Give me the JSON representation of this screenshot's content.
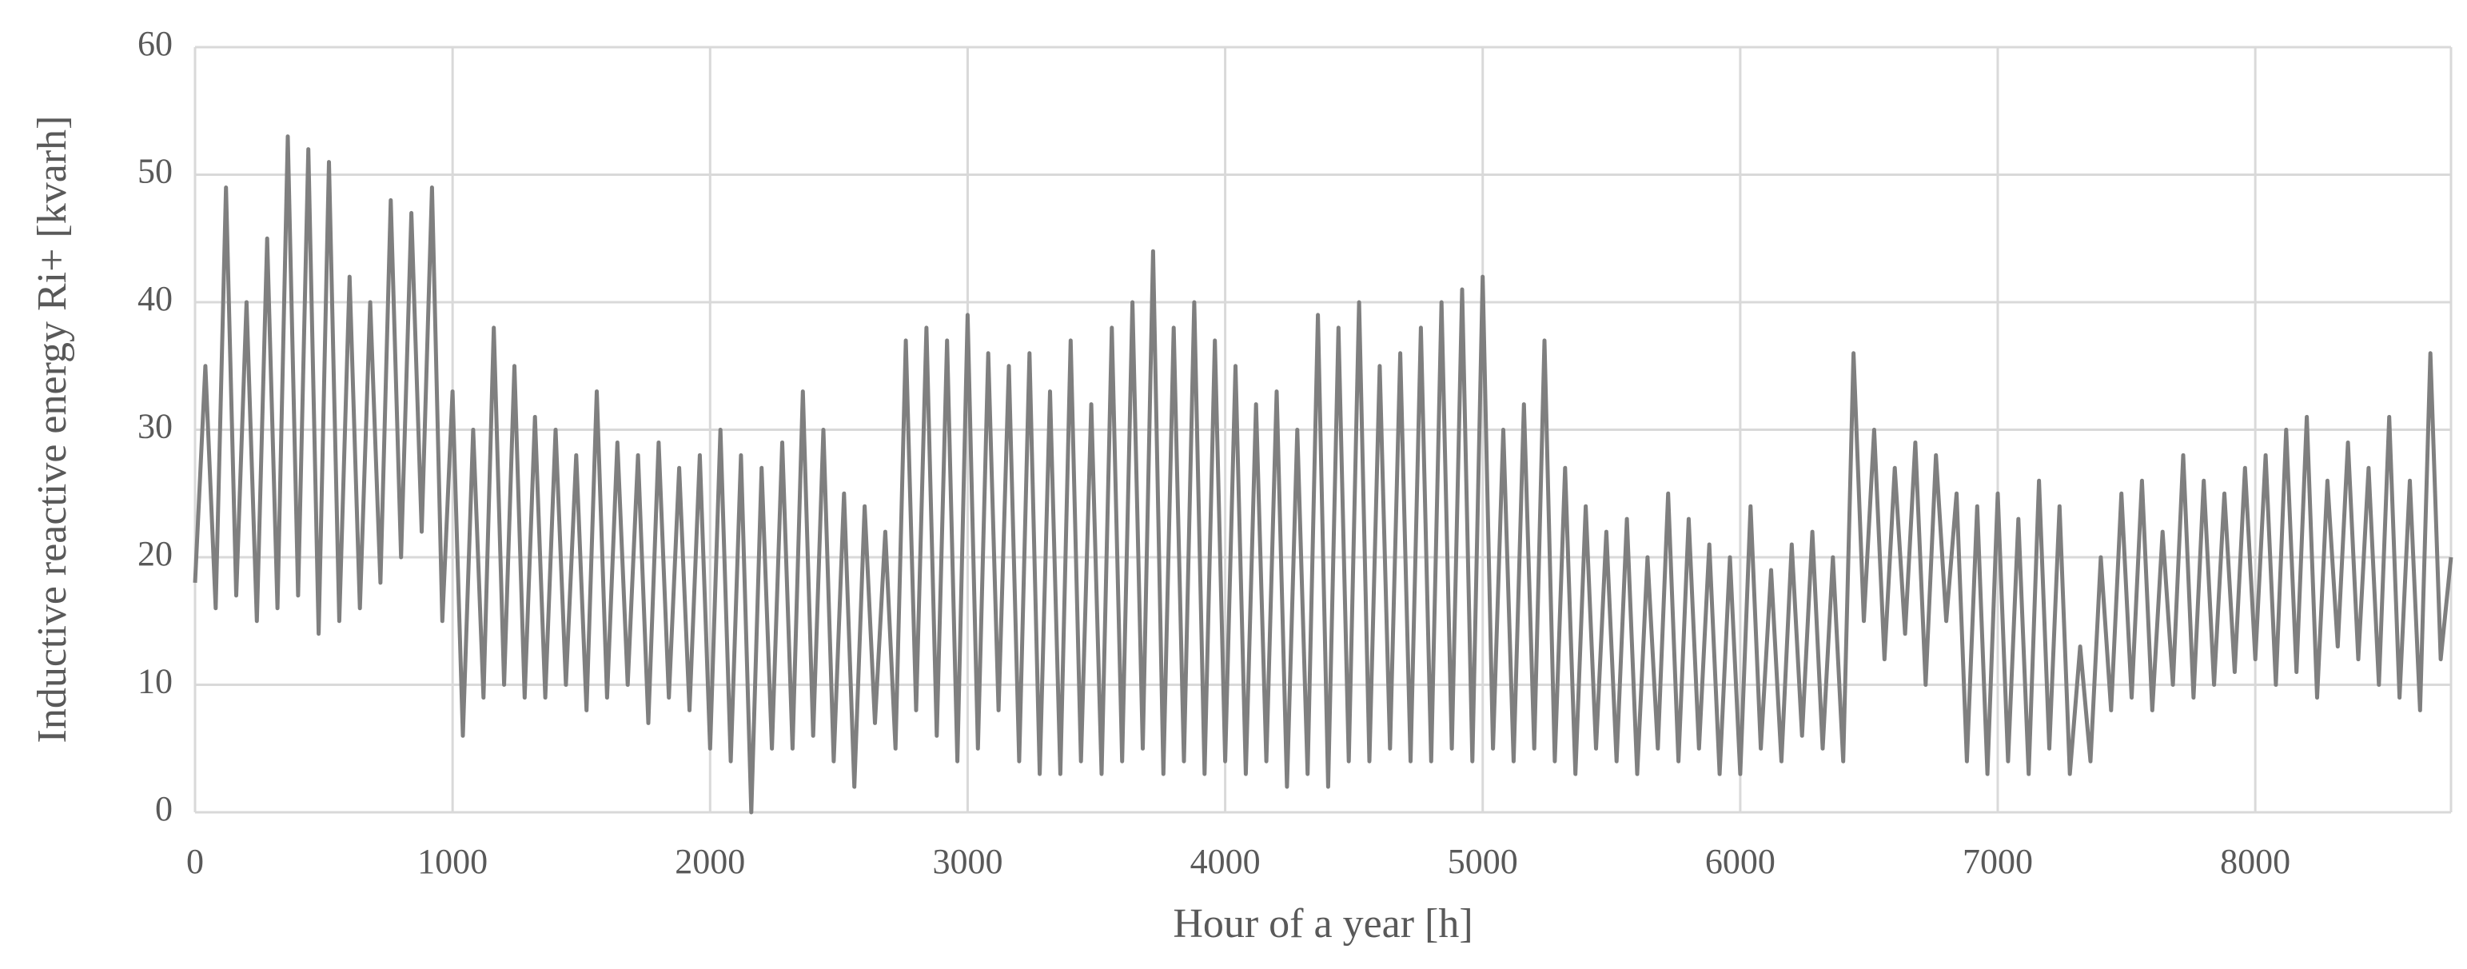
{
  "chart_data": {
    "type": "line",
    "x_label": "Hour of a year  [h]",
    "y_label": "Inductive reactive energy  Ri+ [kvarh]",
    "xlim": [
      0,
      8760
    ],
    "xticks": [
      0,
      1000,
      2000,
      3000,
      4000,
      5000,
      6000,
      7000,
      8000
    ],
    "ylim": [
      0,
      60
    ],
    "yticks": [
      0,
      10,
      20,
      30,
      40,
      50,
      60
    ],
    "grid": true,
    "x": [
      0,
      40,
      80,
      120,
      160,
      200,
      240,
      280,
      320,
      360,
      400,
      440,
      480,
      520,
      560,
      600,
      640,
      680,
      720,
      760,
      800,
      840,
      880,
      920,
      960,
      1000,
      1040,
      1080,
      1120,
      1160,
      1200,
      1240,
      1280,
      1320,
      1360,
      1400,
      1440,
      1480,
      1520,
      1560,
      1600,
      1640,
      1680,
      1720,
      1760,
      1800,
      1840,
      1880,
      1920,
      1960,
      2000,
      2040,
      2080,
      2120,
      2160,
      2200,
      2240,
      2280,
      2320,
      2360,
      2400,
      2440,
      2480,
      2520,
      2560,
      2600,
      2640,
      2680,
      2720,
      2760,
      2800,
      2840,
      2880,
      2920,
      2960,
      3000,
      3040,
      3080,
      3120,
      3160,
      3200,
      3240,
      3280,
      3320,
      3360,
      3400,
      3440,
      3480,
      3520,
      3560,
      3600,
      3640,
      3680,
      3720,
      3760,
      3800,
      3840,
      3880,
      3920,
      3960,
      4000,
      4040,
      4080,
      4120,
      4160,
      4200,
      4240,
      4280,
      4320,
      4360,
      4400,
      4440,
      4480,
      4520,
      4560,
      4600,
      4640,
      4680,
      4720,
      4760,
      4800,
      4840,
      4880,
      4920,
      4960,
      5000,
      5040,
      5080,
      5120,
      5160,
      5200,
      5240,
      5280,
      5320,
      5360,
      5400,
      5440,
      5480,
      5520,
      5560,
      5600,
      5640,
      5680,
      5720,
      5760,
      5800,
      5840,
      5880,
      5920,
      5960,
      6000,
      6040,
      6080,
      6120,
      6160,
      6200,
      6240,
      6280,
      6320,
      6360,
      6400,
      6440,
      6480,
      6520,
      6560,
      6600,
      6640,
      6680,
      6720,
      6760,
      6800,
      6840,
      6880,
      6920,
      6960,
      7000,
      7040,
      7080,
      7120,
      7160,
      7200,
      7240,
      7280,
      7320,
      7360,
      7400,
      7440,
      7480,
      7520,
      7560,
      7600,
      7640,
      7680,
      7720,
      7760,
      7800,
      7840,
      7880,
      7920,
      7960,
      8000,
      8040,
      8080,
      8120,
      8160,
      8200,
      8240,
      8280,
      8320,
      8360,
      8400,
      8440,
      8480,
      8520,
      8560,
      8600,
      8640,
      8680,
      8720,
      8760
    ],
    "series": [
      {
        "color": "#7f7f7f",
        "values": [
          18,
          35,
          16,
          49,
          17,
          40,
          15,
          45,
          16,
          53,
          17,
          52,
          14,
          51,
          15,
          42,
          16,
          40,
          18,
          48,
          20,
          47,
          22,
          49,
          15,
          33,
          6,
          30,
          9,
          38,
          10,
          35,
          9,
          31,
          9,
          30,
          10,
          28,
          8,
          33,
          9,
          29,
          10,
          28,
          7,
          29,
          9,
          27,
          8,
          28,
          5,
          30,
          4,
          28,
          0,
          27,
          5,
          29,
          5,
          33,
          6,
          30,
          4,
          25,
          2,
          24,
          7,
          22,
          5,
          37,
          8,
          38,
          6,
          37,
          4,
          39,
          5,
          36,
          8,
          35,
          4,
          36,
          3,
          33,
          3,
          37,
          4,
          32,
          3,
          38,
          4,
          40,
          5,
          44,
          3,
          38,
          4,
          40,
          3,
          37,
          4,
          35,
          3,
          32,
          4,
          33,
          2,
          30,
          3,
          39,
          2,
          38,
          4,
          40,
          4,
          35,
          5,
          36,
          4,
          38,
          4,
          40,
          5,
          41,
          4,
          42,
          5,
          30,
          4,
          32,
          5,
          37,
          4,
          27,
          3,
          24,
          5,
          22,
          4,
          23,
          3,
          20,
          5,
          25,
          4,
          23,
          5,
          21,
          3,
          20,
          3,
          24,
          5,
          19,
          4,
          21,
          6,
          22,
          5,
          20,
          4,
          36,
          15,
          30,
          12,
          27,
          14,
          29,
          10,
          28,
          15,
          25,
          4,
          24,
          3,
          25,
          4,
          23,
          3,
          26,
          5,
          24,
          3,
          13,
          4,
          20,
          8,
          25,
          9,
          26,
          8,
          22,
          10,
          28,
          9,
          26,
          10,
          25,
          11,
          27,
          12,
          28,
          10,
          30,
          11,
          31,
          9,
          26,
          13,
          29,
          12,
          27,
          10,
          31,
          9,
          26,
          8,
          36,
          12,
          20
        ]
      }
    ]
  }
}
